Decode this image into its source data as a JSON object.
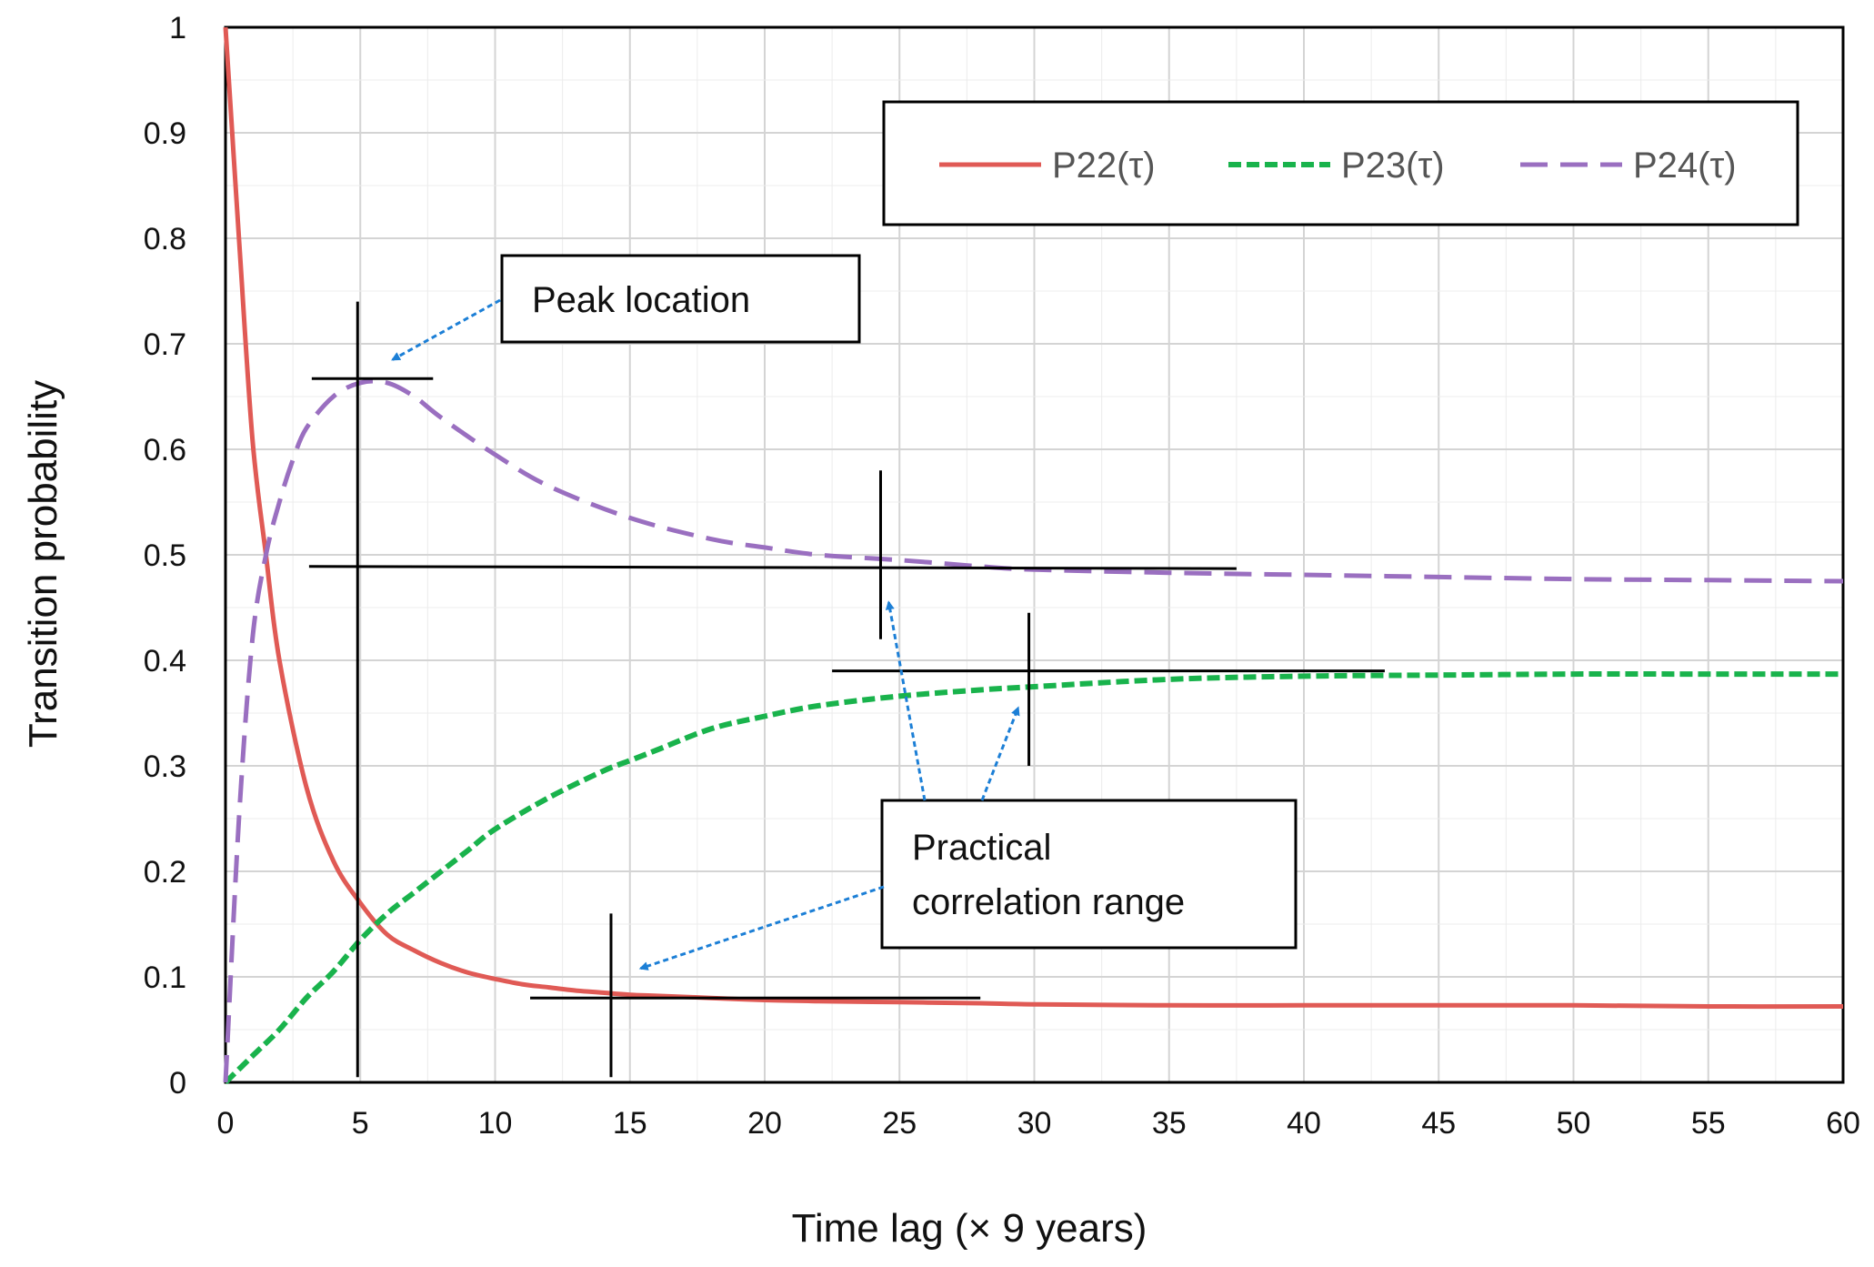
{
  "chart_data": {
    "type": "line",
    "title": "",
    "xlabel": "Time lag (× 9 years)",
    "ylabel": "Transition probability",
    "xlim": [
      0,
      60
    ],
    "ylim": [
      0,
      1
    ],
    "x_ticks": [
      "0",
      "5",
      "10",
      "15",
      "20",
      "25",
      "30",
      "35",
      "40",
      "45",
      "50",
      "55",
      "60"
    ],
    "y_ticks": [
      "0",
      "0.1",
      "0.2",
      "0.3",
      "0.4",
      "0.5",
      "0.6",
      "0.7",
      "0.8",
      "0.9",
      "1"
    ],
    "grid": true,
    "legend_position": "top-right",
    "series": [
      {
        "name": "P22(τ)",
        "color": "#e05a55",
        "style": "solid",
        "x": [
          0,
          0.5,
          1,
          1.5,
          2,
          3,
          4,
          5,
          6,
          7,
          8,
          9,
          10,
          11,
          12,
          13,
          14,
          15,
          16,
          18,
          20,
          22,
          25,
          28,
          30,
          35,
          40,
          45,
          50,
          55,
          60
        ],
        "y": [
          1.0,
          0.8,
          0.61,
          0.5,
          0.4,
          0.28,
          0.21,
          0.17,
          0.14,
          0.125,
          0.113,
          0.104,
          0.098,
          0.093,
          0.09,
          0.087,
          0.085,
          0.083,
          0.082,
          0.08,
          0.078,
          0.077,
          0.076,
          0.075,
          0.074,
          0.073,
          0.073,
          0.073,
          0.073,
          0.072,
          0.072
        ]
      },
      {
        "name": "P23(τ)",
        "color": "#19b34c",
        "style": "dashed",
        "x": [
          0,
          1,
          2,
          3,
          4,
          5,
          6,
          7,
          8,
          9,
          10,
          12,
          14,
          15,
          16,
          18,
          20,
          22,
          25,
          28,
          30,
          35,
          40,
          45,
          50,
          55,
          60
        ],
        "y": [
          0,
          0.025,
          0.05,
          0.08,
          0.105,
          0.135,
          0.16,
          0.18,
          0.2,
          0.22,
          0.24,
          0.27,
          0.295,
          0.305,
          0.315,
          0.335,
          0.347,
          0.357,
          0.366,
          0.372,
          0.375,
          0.382,
          0.385,
          0.386,
          0.387,
          0.387,
          0.387
        ]
      },
      {
        "name": "P24(τ)",
        "color": "#9a6fc0",
        "style": "dashed",
        "x": [
          0,
          0.5,
          1,
          1.5,
          2,
          2.5,
          3,
          4,
          5,
          6,
          7,
          8,
          10,
          12,
          15,
          18,
          20,
          22,
          25,
          28,
          30,
          35,
          40,
          45,
          50,
          55,
          60
        ],
        "y": [
          0,
          0.25,
          0.42,
          0.5,
          0.55,
          0.59,
          0.62,
          0.65,
          0.663,
          0.663,
          0.65,
          0.63,
          0.595,
          0.565,
          0.535,
          0.515,
          0.507,
          0.5,
          0.495,
          0.489,
          0.486,
          0.483,
          0.481,
          0.479,
          0.477,
          0.476,
          0.475
        ]
      }
    ],
    "annotations": [
      {
        "text": "Peak location"
      },
      {
        "text_lines": [
          "Practical",
          "correlation range"
        ]
      }
    ]
  }
}
